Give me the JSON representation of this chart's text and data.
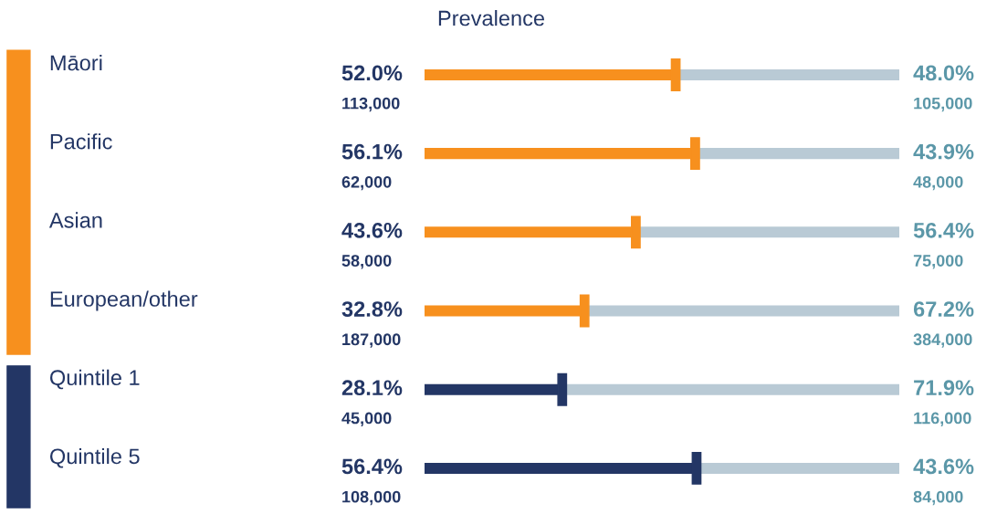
{
  "chart_data": {
    "type": "bar",
    "orientation": "horizontal",
    "stacked": true,
    "title": "Prevalence",
    "categories": [
      "Māori",
      "Pacific",
      "Asian",
      "European/other",
      "Quintile 1",
      "Quintile 5"
    ],
    "series": [
      {
        "colors": [
          "#f7901e",
          "#f7901e",
          "#f7901e",
          "#f7901e",
          "#233665",
          "#233665"
        ],
        "values": [
          52.0,
          56.1,
          43.6,
          32.8,
          28.1,
          56.4
        ],
        "value_labels": [
          "52.0%\n113,000",
          "56.1%\n62,000",
          "43.6%\n58,000",
          "32.8%\n187,000",
          "28.1%\n45,000",
          "56.4%\n108,000"
        ]
      },
      {
        "color": "#b9cad5",
        "values": [
          48.0,
          43.9,
          56.4,
          67.2,
          71.9,
          43.6
        ],
        "value_labels": [
          "48.0%\n105,000",
          "43.9%\n48,000",
          "56.4%\n75,000",
          "67.2%\n384,000",
          "71.9%\n116,000",
          "43.6%\n84,000"
        ]
      }
    ],
    "xlim": [
      0,
      100
    ],
    "tick_labels": "y",
    "grid": false,
    "legend": false
  }
}
